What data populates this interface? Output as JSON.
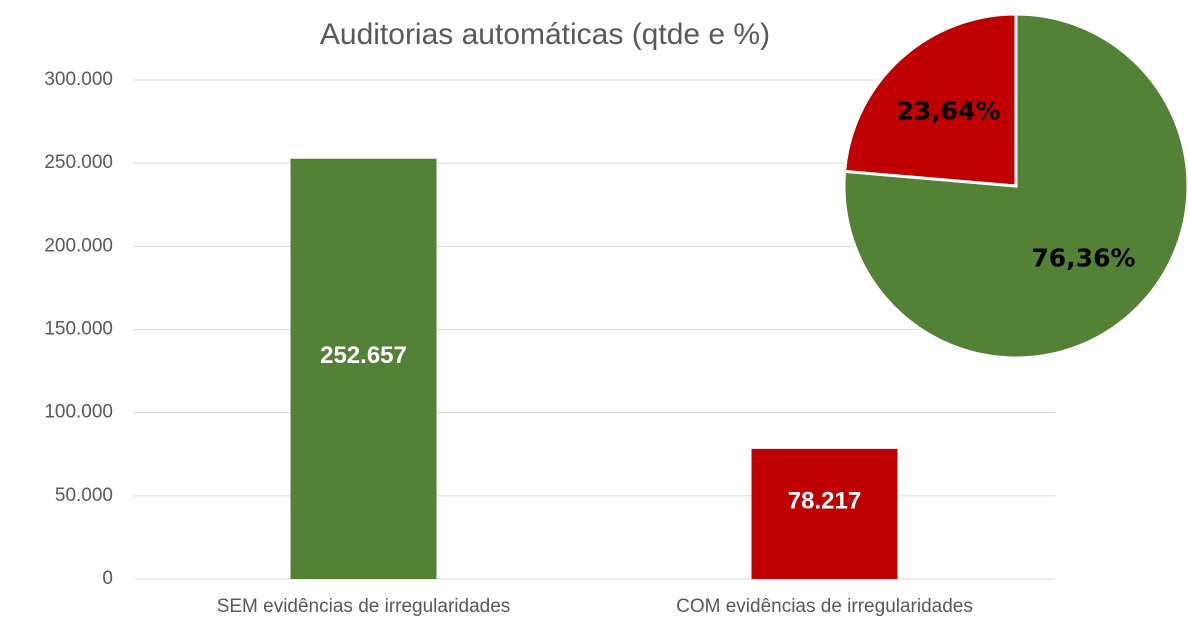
{
  "chart_data": [
    {
      "type": "bar",
      "title": "Auditorias automáticas (qtde e %)",
      "categories": [
        "SEM evidências de irregularidades",
        "COM evidências de irregularidades"
      ],
      "values": [
        252657,
        78217
      ],
      "value_labels": [
        "252.657",
        "78.217"
      ],
      "colors": [
        "#538135",
        "#c00000"
      ],
      "ylim": [
        0,
        300000
      ],
      "yticks": [
        0,
        {
          "value": 50000,
          "label": "50.000"
        },
        {
          "value": 100000,
          "label": "100.000"
        },
        {
          "value": 150000,
          "label": "150.000"
        },
        {
          "value": 200000,
          "label": "200.000"
        },
        {
          "value": 250000,
          "label": "250.000"
        },
        {
          "value": 300000,
          "label": "300.000"
        }
      ],
      "grid": true
    },
    {
      "type": "pie",
      "values": [
        76.36,
        23.64
      ],
      "value_labels": [
        "76,36%",
        "23,64%"
      ],
      "colors": [
        "#538135",
        "#c00000"
      ]
    }
  ]
}
